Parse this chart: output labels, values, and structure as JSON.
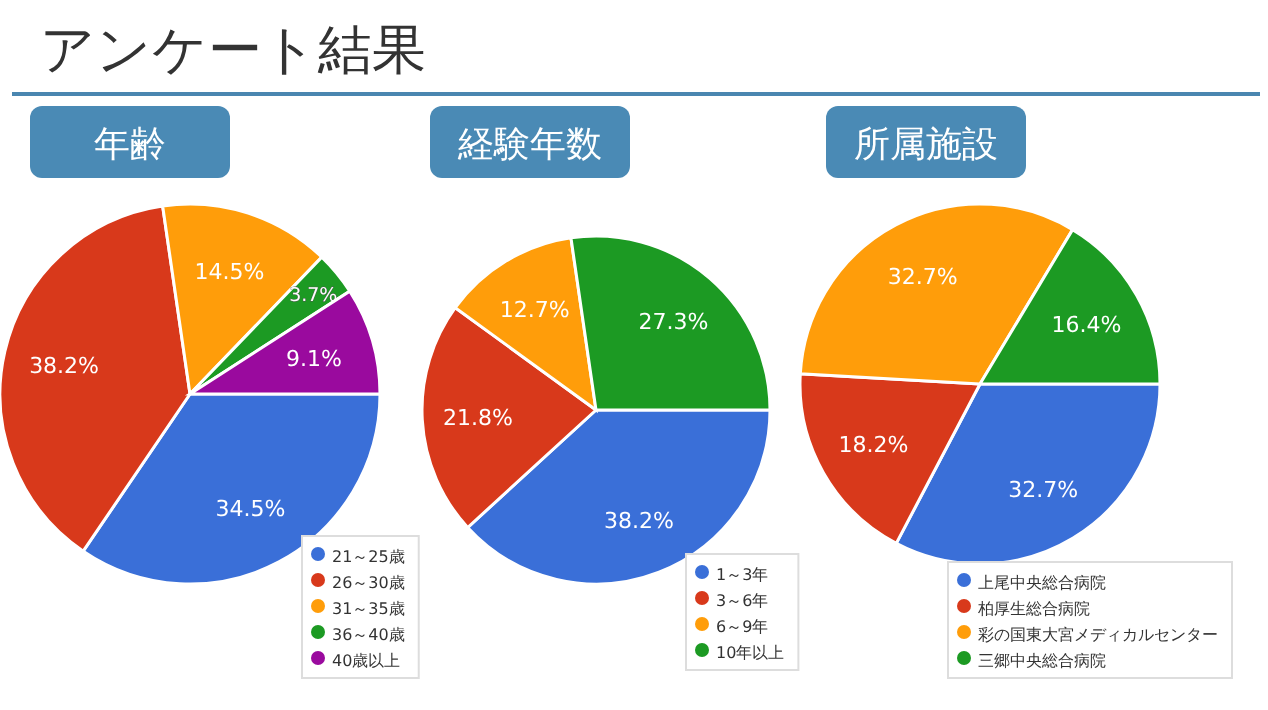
{
  "chart_data": [
    {
      "type": "pie",
      "title": "年齢",
      "annotations": [
        "アンケート結果"
      ],
      "categories": [
        "21～25歳",
        "26～30歳",
        "31～35歳",
        "36～40歳",
        "40歳以上"
      ],
      "values": [
        34.5,
        38.2,
        14.5,
        3.7,
        9.1
      ],
      "colors": [
        "#3a6fd8",
        "#d8391b",
        "#ff9d0a",
        "#1c9a23",
        "#9a0a9e"
      ],
      "value_labels": [
        "34.5%",
        "38.2%",
        "14.5%",
        "3.7%",
        "9.1%"
      ],
      "legend": "bottom right"
    },
    {
      "type": "pie",
      "title": "経験年数",
      "categories": [
        "1～3年",
        "3～6年",
        "6～9年",
        "10年以上"
      ],
      "values": [
        38.2,
        21.8,
        12.7,
        27.3
      ],
      "colors": [
        "#3a6fd8",
        "#d8391b",
        "#ff9d0a",
        "#1c9a23"
      ],
      "value_labels": [
        "38.2%",
        "21.8%",
        "12.7%",
        "27.3%"
      ],
      "legend": "bottom right"
    },
    {
      "type": "pie",
      "title": "所属施設",
      "categories": [
        "上尾中央総合病院",
        "柏厚生総合病院",
        "彩の国東大宮メディカルセンター",
        "三郷中央総合病院"
      ],
      "values": [
        32.7,
        18.2,
        32.7,
        16.4
      ],
      "colors": [
        "#3a6fd8",
        "#d8391b",
        "#ff9d0a",
        "#1c9a23"
      ],
      "value_labels": [
        "32.7%",
        "18.2%",
        "32.7%",
        "16.4%"
      ],
      "legend": "bottom right"
    }
  ]
}
